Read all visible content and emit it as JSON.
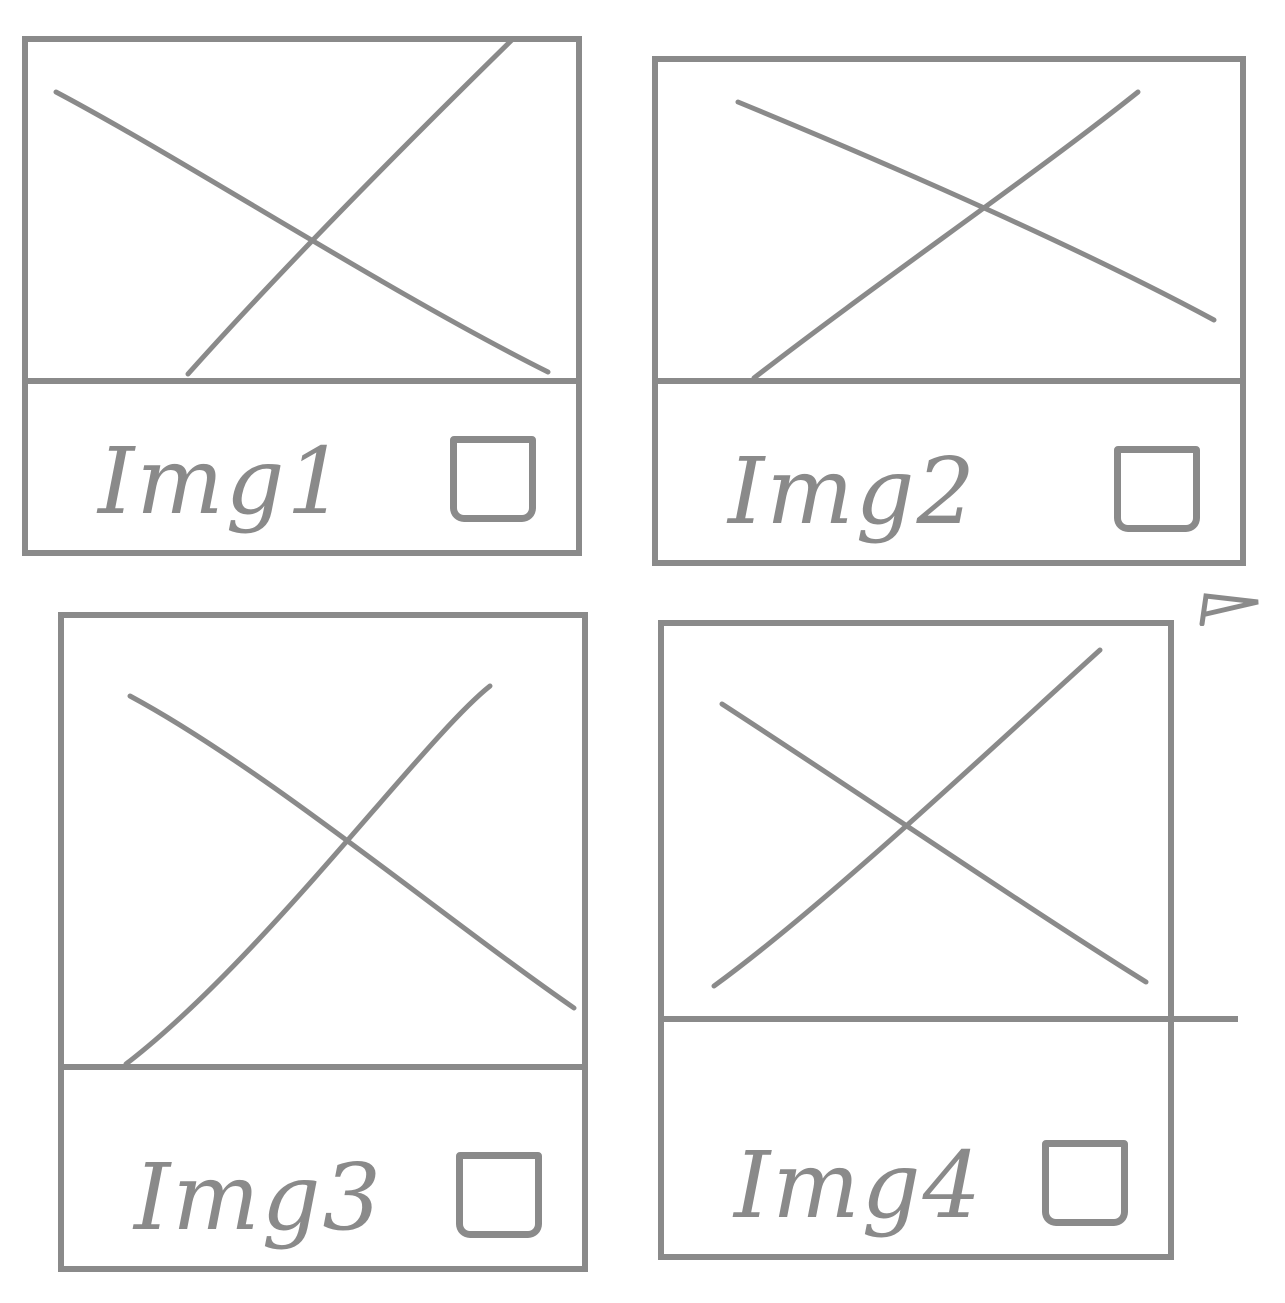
{
  "cards": [
    {
      "label": "Img1",
      "checked": false
    },
    {
      "label": "Img2",
      "checked": false
    },
    {
      "label": "Img3",
      "checked": false
    },
    {
      "label": "Img4",
      "checked": false
    }
  ],
  "icons": {
    "placeholder": "image-placeholder-icon",
    "checkbox": "checkbox-icon"
  },
  "colors": {
    "stroke": "#8a8a8a",
    "background": "#ffffff"
  }
}
